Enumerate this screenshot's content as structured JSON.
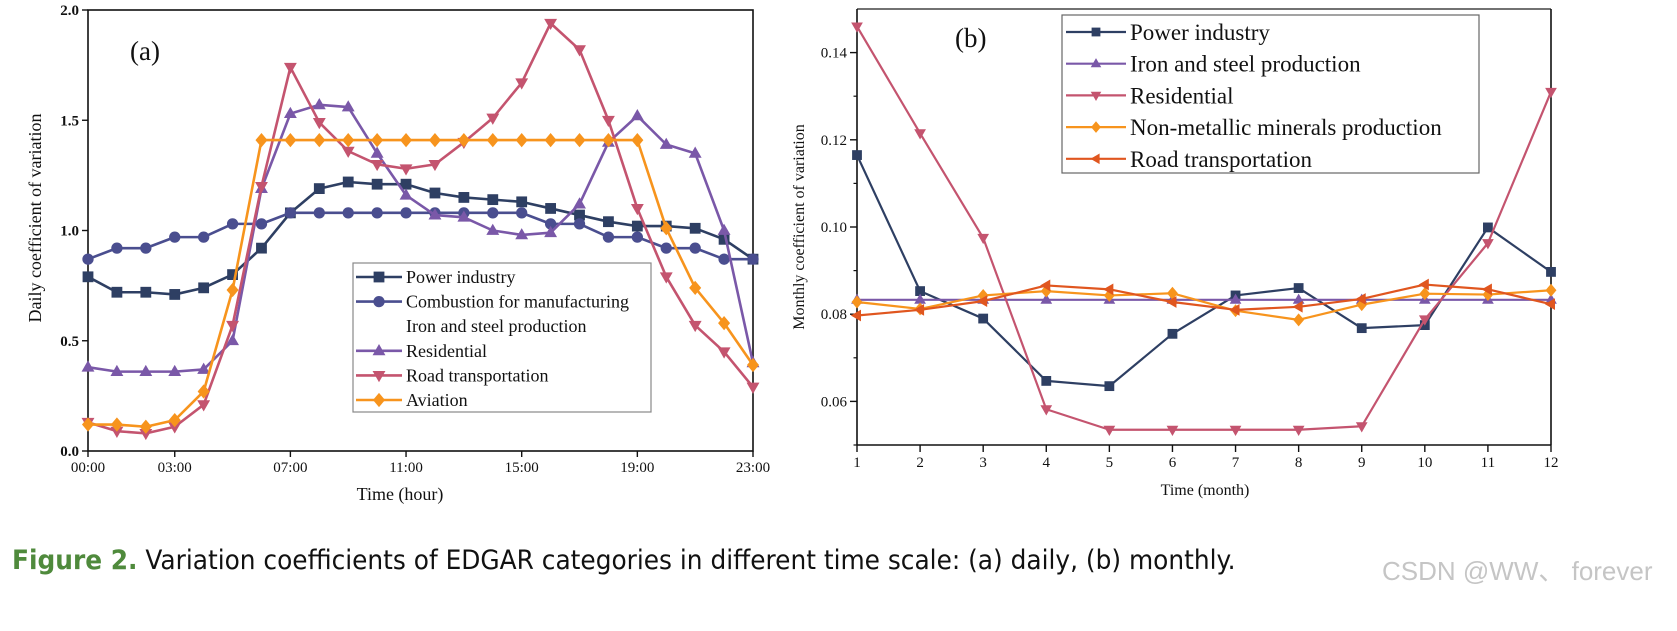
{
  "caption": {
    "label": "Figure 2.",
    "text": "Variation coefficients of EDGAR categories in different time scale: (a) daily, (b) monthly."
  },
  "watermark": "CSDN @WW、 forever",
  "chart_data": [
    {
      "type": "line",
      "panel_label": "(a)",
      "title": "",
      "xlabel": "Time (hour)",
      "ylabel": "Daily coefficient of variation",
      "x": [
        0,
        1,
        2,
        3,
        4,
        5,
        6,
        7,
        8,
        9,
        10,
        11,
        12,
        13,
        14,
        15,
        16,
        17,
        18,
        19,
        20,
        21,
        22,
        23
      ],
      "xlim": [
        0,
        23
      ],
      "ylim": [
        0.0,
        2.0
      ],
      "xticks": [
        0,
        3,
        7,
        11,
        15,
        19,
        23
      ],
      "xtick_labels": [
        "00:00",
        "03:00",
        "07:00",
        "11:00",
        "15:00",
        "19:00",
        "23:00"
      ],
      "yticks": [
        0.0,
        0.5,
        1.0,
        1.5,
        2.0
      ],
      "ytick_labels": [
        "0.0",
        "0.5",
        "1.0",
        "1.5",
        "2.0"
      ],
      "grid": false,
      "legend_position": "bottom-right",
      "legend_entries": [
        "Power industry",
        "Combustion for manufacturing",
        "Iron and steel production",
        "Residential",
        "Road transportation",
        "Aviation"
      ],
      "series": [
        {
          "name": "Power industry",
          "color": "#2e3f63",
          "marker": "square",
          "values": [
            0.79,
            0.72,
            0.72,
            0.71,
            0.74,
            0.8,
            0.92,
            1.08,
            1.19,
            1.22,
            1.21,
            1.21,
            1.17,
            1.15,
            1.14,
            1.13,
            1.1,
            1.07,
            1.04,
            1.02,
            1.02,
            1.01,
            0.96,
            0.87
          ]
        },
        {
          "name": "Combustion for manufacturing",
          "color": "#4a4e8f",
          "marker": "circle",
          "values": [
            0.87,
            0.92,
            0.92,
            0.97,
            0.97,
            1.03,
            1.03,
            1.08,
            1.08,
            1.08,
            1.08,
            1.08,
            1.08,
            1.08,
            1.08,
            1.08,
            1.03,
            1.03,
            0.97,
            0.97,
            0.92,
            0.92,
            0.87,
            0.87
          ]
        },
        {
          "name": "Iron and steel production",
          "color": null,
          "marker": "none",
          "values": []
        },
        {
          "name": "Residential",
          "color": "#7a58a8",
          "marker": "triangle-up",
          "values": [
            0.38,
            0.36,
            0.36,
            0.36,
            0.37,
            0.5,
            1.19,
            1.53,
            1.57,
            1.56,
            1.35,
            1.16,
            1.07,
            1.06,
            1.0,
            0.98,
            0.99,
            1.12,
            1.4,
            1.52,
            1.39,
            1.35,
            1.0,
            0.4
          ]
        },
        {
          "name": "Road transportation",
          "color": "#c4546f",
          "marker": "triangle-down",
          "values": [
            0.13,
            0.09,
            0.08,
            0.11,
            0.21,
            0.57,
            1.2,
            1.74,
            1.49,
            1.36,
            1.3,
            1.28,
            1.3,
            1.4,
            1.51,
            1.67,
            1.94,
            1.82,
            1.5,
            1.1,
            0.79,
            0.57,
            0.45,
            0.29
          ]
        },
        {
          "name": "Aviation",
          "color": "#f7941d",
          "marker": "diamond",
          "values": [
            0.12,
            0.12,
            0.11,
            0.14,
            0.27,
            0.73,
            1.41,
            1.41,
            1.41,
            1.41,
            1.41,
            1.41,
            1.41,
            1.41,
            1.41,
            1.41,
            1.41,
            1.41,
            1.41,
            1.41,
            1.01,
            0.74,
            0.58,
            0.39
          ]
        }
      ]
    },
    {
      "type": "line",
      "panel_label": "(b)",
      "title": "",
      "xlabel": "Time (month)",
      "ylabel": "Monthly coefficient of variation",
      "x": [
        1,
        2,
        3,
        4,
        5,
        6,
        7,
        8,
        9,
        10,
        11,
        12
      ],
      "xlim": [
        1,
        12
      ],
      "ylim": [
        0.05,
        0.15
      ],
      "xticks": [
        1,
        2,
        3,
        4,
        5,
        6,
        7,
        8,
        9,
        10,
        11,
        12
      ],
      "xtick_labels": [
        "1",
        "2",
        "3",
        "4",
        "5",
        "6",
        "7",
        "8",
        "9",
        "10",
        "11",
        "12"
      ],
      "yticks": [
        0.06,
        0.08,
        0.1,
        0.12,
        0.14
      ],
      "ytick_labels": [
        "0.06",
        "0.08",
        "0.10",
        "0.12",
        "0.14"
      ],
      "minor_yticks": [
        0.05,
        0.07,
        0.09,
        0.11,
        0.13
      ],
      "grid": false,
      "legend_position": "top-right",
      "legend_entries": [
        "Power industry",
        "Iron and steel production",
        "Residential",
        "Non-metallic minerals production",
        "Road transportation"
      ],
      "series": [
        {
          "name": "Power industry",
          "color": "#2e3f63",
          "marker": "square",
          "values": [
            0.1165,
            0.0853,
            0.079,
            0.0647,
            0.0635,
            0.0755,
            0.0843,
            0.086,
            0.0768,
            0.0775,
            0.0999,
            0.0897
          ]
        },
        {
          "name": "Iron and steel production",
          "color": "#7a58a8",
          "marker": "triangle-up",
          "values": [
            0.0833,
            0.0833,
            0.0833,
            0.0833,
            0.0833,
            0.0833,
            0.0833,
            0.0833,
            0.0833,
            0.0833,
            0.0833,
            0.0833
          ]
        },
        {
          "name": "Residential",
          "color": "#c4546f",
          "marker": "triangle-down",
          "values": [
            0.146,
            0.1215,
            0.0975,
            0.0582,
            0.0535,
            0.0535,
            0.0535,
            0.0535,
            0.0543,
            0.0788,
            0.0963,
            0.131
          ]
        },
        {
          "name": "Non-metallic minerals production",
          "color": "#f7941d",
          "marker": "diamond",
          "values": [
            0.0828,
            0.0812,
            0.0843,
            0.0853,
            0.0843,
            0.0848,
            0.0808,
            0.0787,
            0.0822,
            0.0847,
            0.0845,
            0.0855
          ]
        },
        {
          "name": "Road transportation",
          "color": "#e0561f",
          "marker": "triangle-left",
          "values": [
            0.0797,
            0.081,
            0.083,
            0.0866,
            0.0857,
            0.0828,
            0.081,
            0.0817,
            0.0835,
            0.0868,
            0.0857,
            0.0823
          ]
        }
      ]
    }
  ]
}
